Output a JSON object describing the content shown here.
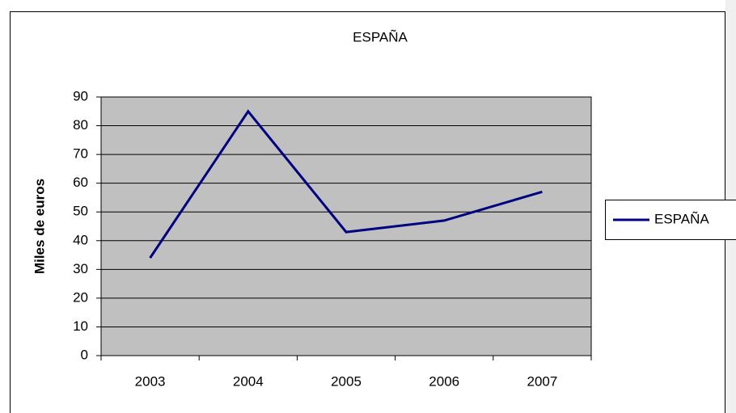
{
  "chart_data": {
    "type": "line",
    "title": "ESPAÑA",
    "y_label": "Miles de euros",
    "categories": [
      "2003",
      "2004",
      "2005",
      "2006",
      "2007"
    ],
    "series": [
      {
        "name": "ESPAÑA",
        "color": "#000080",
        "values": [
          34,
          85,
          43,
          47,
          57
        ]
      }
    ],
    "ylim": [
      0,
      90
    ],
    "yticks": [
      0,
      10,
      20,
      30,
      40,
      50,
      60,
      70,
      80,
      90
    ],
    "grid": true,
    "legend": "right"
  }
}
